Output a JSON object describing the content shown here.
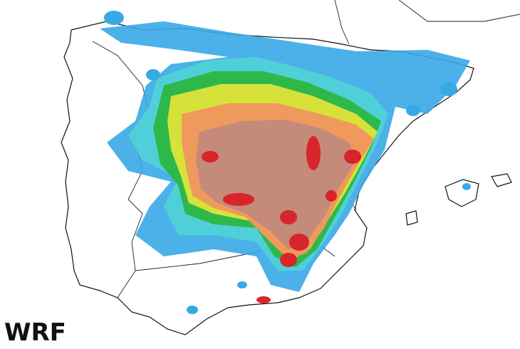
{
  "label": "WRF"
}
